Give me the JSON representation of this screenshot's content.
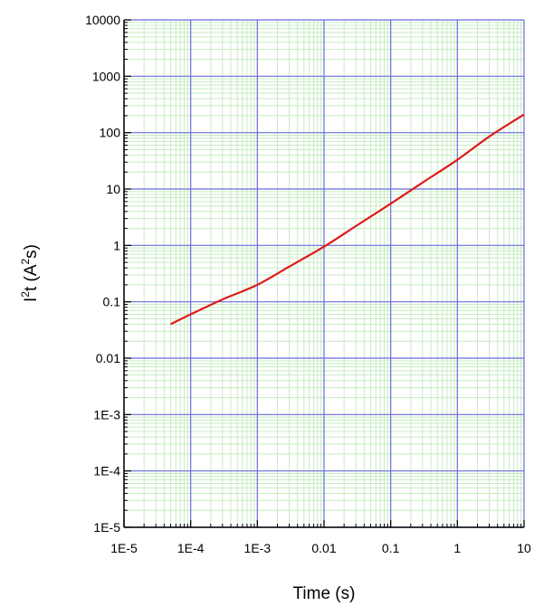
{
  "chart_data": {
    "type": "line",
    "xscale": "log",
    "yscale": "log",
    "xlim": [
      1e-05,
      10
    ],
    "ylim": [
      1e-05,
      10000
    ],
    "xlabel": "Time (s)",
    "ylabel": {
      "base": "I",
      "sup1": "2",
      "mid": "t (A",
      "sup2": "2",
      "end": "s)"
    },
    "xticks": [
      {
        "value": 1e-05,
        "label": "1E-5"
      },
      {
        "value": 0.0001,
        "label": "1E-4"
      },
      {
        "value": 0.001,
        "label": "1E-3"
      },
      {
        "value": 0.01,
        "label": "0.01"
      },
      {
        "value": 0.1,
        "label": "0.1"
      },
      {
        "value": 1,
        "label": "1"
      },
      {
        "value": 10,
        "label": "10"
      }
    ],
    "yticks": [
      {
        "value": 1e-05,
        "label": "1E-5"
      },
      {
        "value": 0.0001,
        "label": "1E-4"
      },
      {
        "value": 0.001,
        "label": "1E-3"
      },
      {
        "value": 0.01,
        "label": "0.01"
      },
      {
        "value": 0.1,
        "label": "0.1"
      },
      {
        "value": 1,
        "label": "1"
      },
      {
        "value": 10,
        "label": "10"
      },
      {
        "value": 100,
        "label": "100"
      },
      {
        "value": 1000,
        "label": "1000"
      },
      {
        "value": 10000,
        "label": "10000"
      }
    ],
    "grid": {
      "major": true,
      "minor": true,
      "major_color": "#6b6bdc",
      "minor_color": "#c6ecc0"
    },
    "series": [
      {
        "color": "#e01a1a",
        "x": [
          5e-05,
          0.0001,
          0.0003,
          0.001,
          0.003,
          0.01,
          0.03,
          0.1,
          0.3,
          1,
          3,
          10
        ],
        "y": [
          0.04,
          0.06,
          0.11,
          0.2,
          0.42,
          0.95,
          2.2,
          5.5,
          13,
          33,
          85,
          210
        ]
      }
    ]
  }
}
